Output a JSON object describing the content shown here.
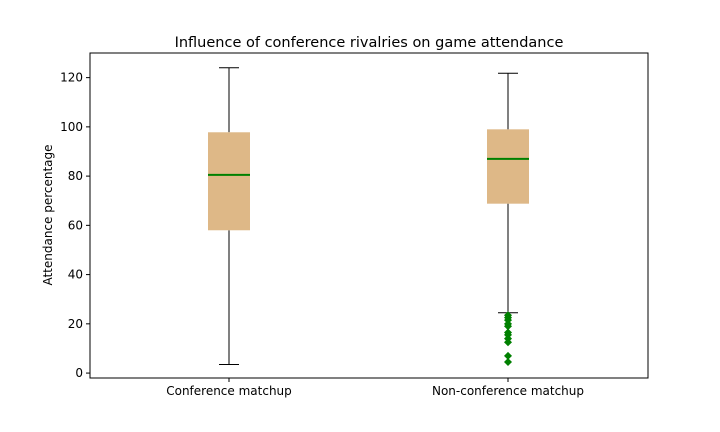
{
  "chart_data": {
    "type": "box",
    "title": "Influence of conference rivalries on game attendance",
    "xlabel": "",
    "ylabel": "Attendance percentage",
    "ylim": [
      -2,
      130
    ],
    "yticks": [
      0,
      20,
      40,
      60,
      80,
      100,
      120
    ],
    "categories": [
      "Conference matchup",
      "Non-conference matchup"
    ],
    "boxes": [
      {
        "whisker_low": 3.5,
        "q1": 58,
        "median": 80.5,
        "q3": 97.8,
        "whisker_high": 124,
        "outliers": []
      },
      {
        "whisker_low": 24.5,
        "q1": 68.8,
        "median": 87,
        "q3": 99,
        "whisker_high": 121.8,
        "outliers": [
          4.5,
          7,
          12.5,
          14,
          15.5,
          16.5,
          19,
          20,
          21.5,
          22.5,
          23.5
        ]
      }
    ],
    "colors": {
      "box_fill": "#deb887",
      "median": "#008000",
      "outliers": "#008000",
      "whisker": "#000000"
    },
    "grid": false,
    "legend": "none"
  }
}
